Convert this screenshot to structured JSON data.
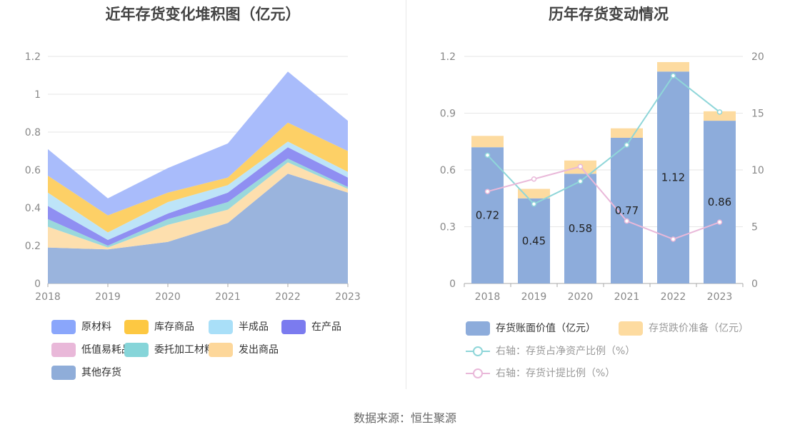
{
  "source_label": "数据来源：恒生聚源",
  "left_chart": {
    "title": "近年存货变化堆积图（亿元）",
    "chart_data": {
      "type": "area",
      "stacked": true,
      "categories": [
        "2018",
        "2019",
        "2020",
        "2021",
        "2022",
        "2023"
      ],
      "ylim": [
        0,
        1.2
      ],
      "yticks": [
        "0",
        "0.2",
        "0.4",
        "0.6",
        "0.8",
        "1",
        "1.2"
      ],
      "grid": true,
      "legend_position": "bottom",
      "series": [
        {
          "name": "其他存货",
          "color": "#9ab4dd",
          "values": [
            0.19,
            0.18,
            0.22,
            0.32,
            0.58,
            0.48
          ]
        },
        {
          "name": "发出商品",
          "color": "#fddfae",
          "values": [
            0.11,
            0.01,
            0.09,
            0.07,
            0.06,
            0.02
          ]
        },
        {
          "name": "委托加工材料",
          "color": "#9ad8dc",
          "values": [
            0.04,
            0.01,
            0.03,
            0.04,
            0.02,
            0.01
          ]
        },
        {
          "name": "低值易耗品",
          "color": "#e9b8d9",
          "values": [
            0.0,
            0.0,
            0.0,
            0.0,
            0.0,
            0.0
          ]
        },
        {
          "name": "在产品",
          "color": "#8f8ff2",
          "values": [
            0.07,
            0.03,
            0.03,
            0.05,
            0.06,
            0.05
          ]
        },
        {
          "name": "半成品",
          "color": "#bde4f8",
          "values": [
            0.07,
            0.04,
            0.06,
            0.04,
            0.03,
            0.03
          ]
        },
        {
          "name": "库存商品",
          "color": "#fdd066",
          "values": [
            0.09,
            0.09,
            0.05,
            0.04,
            0.1,
            0.11
          ]
        },
        {
          "name": "原材料",
          "color": "#a9bcfb",
          "values": [
            0.14,
            0.09,
            0.13,
            0.18,
            0.27,
            0.16
          ]
        }
      ]
    },
    "legend": [
      {
        "name": "原材料",
        "color": "#8aa6fb"
      },
      {
        "name": "库存商品",
        "color": "#fdc842"
      },
      {
        "name": "半成品",
        "color": "#a9dff8"
      },
      {
        "name": "在产品",
        "color": "#7b7bef"
      },
      {
        "name": "低值易耗品",
        "color": "#e9b8d9"
      },
      {
        "name": "委托加工材料",
        "color": "#86d5d9"
      },
      {
        "name": "发出商品",
        "color": "#fdd79a"
      },
      {
        "name": "其他存货",
        "color": "#8fadd9"
      }
    ]
  },
  "right_chart": {
    "title": "历年存货变动情况",
    "chart_data": {
      "type": "bar",
      "stacked": true,
      "categories": [
        "2018",
        "2019",
        "2020",
        "2021",
        "2022",
        "2023"
      ],
      "ylim_left": [
        0,
        1.2
      ],
      "yticks_left": [
        "0",
        "0.3",
        "0.6",
        "0.9",
        "1.2"
      ],
      "ylim_right": [
        0,
        20
      ],
      "yticks_right": [
        "0",
        "5",
        "10",
        "15",
        "20"
      ],
      "grid": true,
      "legend_position": "bottom",
      "series": [
        {
          "name": "存货账面价值（亿元）",
          "type": "bar",
          "axis": "left",
          "color": "#8dacdb",
          "values": [
            0.72,
            0.45,
            0.58,
            0.77,
            1.12,
            0.86
          ],
          "labels": [
            "0.72",
            "0.45",
            "0.58",
            "0.77",
            "1.12",
            "0.86"
          ]
        },
        {
          "name": "存货跌价准备（亿元）",
          "type": "bar",
          "axis": "left",
          "color": "#fddba0",
          "values": [
            0.06,
            0.05,
            0.07,
            0.05,
            0.05,
            0.05
          ]
        },
        {
          "name": "右轴：存货占净资产比例（%）",
          "type": "line",
          "axis": "right",
          "color": "#8fd6d9",
          "values": [
            11.3,
            7.0,
            9.0,
            12.2,
            18.3,
            15.1
          ]
        },
        {
          "name": "右轴：存货计提比例（%）",
          "type": "line",
          "axis": "right",
          "color": "#e9b8d9",
          "values": [
            8.1,
            9.2,
            10.3,
            5.5,
            3.9,
            5.4
          ]
        }
      ]
    }
  }
}
